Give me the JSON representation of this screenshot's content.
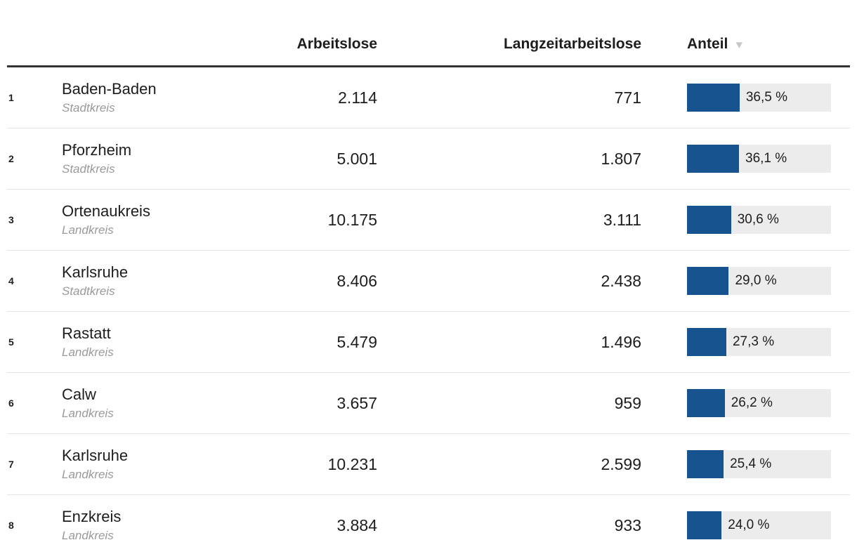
{
  "chart_data": {
    "type": "table",
    "columns": [
      "",
      "Arbeitslose",
      "Langzeitarbeitslose",
      "Anteil"
    ],
    "sort": {
      "column": "Anteil",
      "direction": "desc"
    },
    "bar_axis_max": 100,
    "bar_column": "Anteil",
    "rows": [
      {
        "rank": "1",
        "name": "Baden-Baden",
        "category": "Stadtkreis",
        "arbeitslose": "2.114",
        "langzeitarbeitslose": "771",
        "anteil_label": "36,5 %",
        "anteil_percent": 36.5
      },
      {
        "rank": "2",
        "name": "Pforzheim",
        "category": "Stadtkreis",
        "arbeitslose": "5.001",
        "langzeitarbeitslose": "1.807",
        "anteil_label": "36,1 %",
        "anteil_percent": 36.1
      },
      {
        "rank": "3",
        "name": "Ortenaukreis",
        "category": "Landkreis",
        "arbeitslose": "10.175",
        "langzeitarbeitslose": "3.111",
        "anteil_label": "30,6 %",
        "anteil_percent": 30.6
      },
      {
        "rank": "4",
        "name": "Karlsruhe",
        "category": "Stadtkreis",
        "arbeitslose": "8.406",
        "langzeitarbeitslose": "2.438",
        "anteil_label": "29,0 %",
        "anteil_percent": 29.0
      },
      {
        "rank": "5",
        "name": "Rastatt",
        "category": "Landkreis",
        "arbeitslose": "5.479",
        "langzeitarbeitslose": "1.496",
        "anteil_label": "27,3 %",
        "anteil_percent": 27.3
      },
      {
        "rank": "6",
        "name": "Calw",
        "category": "Landkreis",
        "arbeitslose": "3.657",
        "langzeitarbeitslose": "959",
        "anteil_label": "26,2 %",
        "anteil_percent": 26.2
      },
      {
        "rank": "7",
        "name": "Karlsruhe",
        "category": "Landkreis",
        "arbeitslose": "10.231",
        "langzeitarbeitslose": "2.599",
        "anteil_label": "25,4 %",
        "anteil_percent": 25.4
      },
      {
        "rank": "8",
        "name": "Enzkreis",
        "category": "Landkreis",
        "arbeitslose": "3.884",
        "langzeitarbeitslose": "933",
        "anteil_label": "24,0 %",
        "anteil_percent": 24.0
      }
    ]
  },
  "header": {
    "col_arbeitslose": "Arbeitslose",
    "col_langzeitarbeitslose": "Langzeitarbeitslose",
    "col_anteil": "Anteil",
    "sort_arrow": "▼"
  },
  "colors": {
    "bar_fill": "#17548f",
    "bar_track": "#ececec",
    "header_rule": "#333333",
    "row_divider": "#e4e4e4",
    "subtitle_gray": "#9a9a9a",
    "sort_arrow_gray": "#c8c8c8",
    "text": "#1d1d1f"
  }
}
